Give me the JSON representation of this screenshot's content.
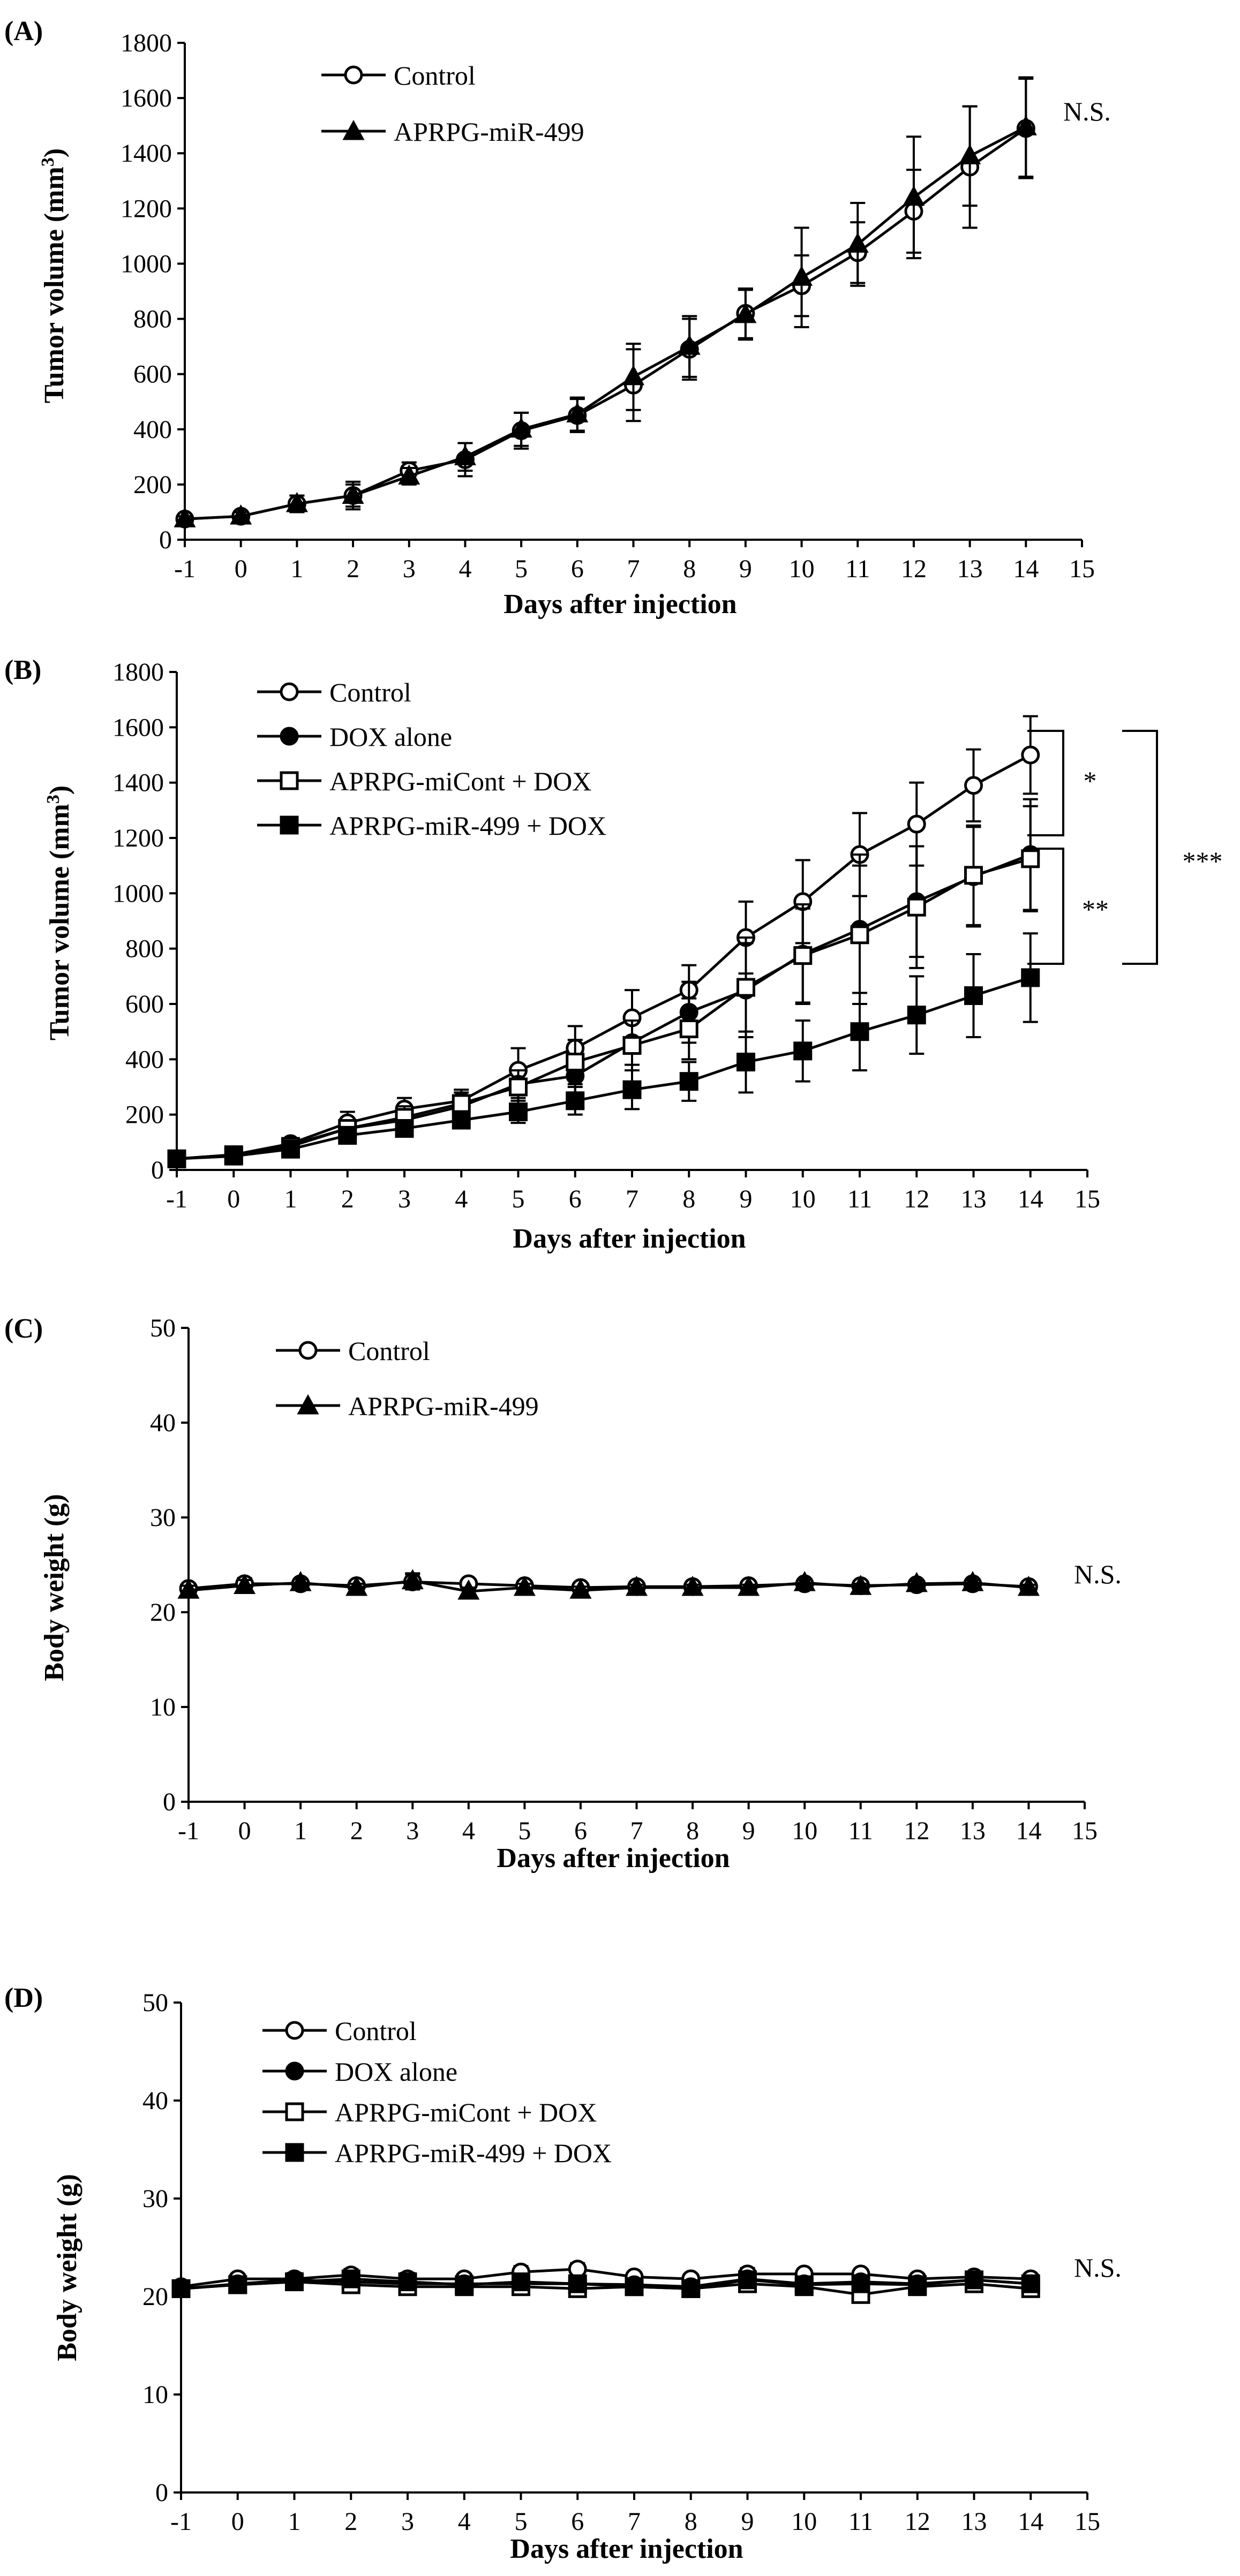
{
  "chart_data": [
    {
      "panel": "(A)",
      "type": "line",
      "xlabel": "Days after injection",
      "ylabel": "Tumor volume (mm",
      "ylabel_sup": "3",
      "ylabel_close": ")",
      "ylim": [
        0,
        1800
      ],
      "yticks": [
        0,
        200,
        400,
        600,
        800,
        1000,
        1200,
        1400,
        1600,
        1800
      ],
      "xlim": [
        -1,
        15
      ],
      "xticks": [
        -1,
        0,
        1,
        2,
        3,
        4,
        5,
        6,
        7,
        8,
        9,
        10,
        11,
        12,
        13,
        14,
        15
      ],
      "x": [
        -1,
        0,
        1,
        2,
        3,
        4,
        5,
        6,
        7,
        8,
        9,
        10,
        11,
        12,
        13,
        14
      ],
      "annotation": "N.S.",
      "series": [
        {
          "name": "Control",
          "marker": "circle-open",
          "values": [
            75,
            85,
            130,
            160,
            250,
            290,
            395,
            450,
            560,
            690,
            820,
            920,
            1040,
            1190,
            1350,
            1490
          ],
          "errors": [
            10,
            15,
            30,
            40,
            30,
            60,
            65,
            60,
            130,
            110,
            90,
            110,
            110,
            150,
            220,
            180
          ]
        },
        {
          "name": "APRPG-miR-499",
          "marker": "triangle-filled",
          "values": [
            75,
            85,
            130,
            160,
            230,
            300,
            400,
            455,
            590,
            700,
            815,
            950,
            1070,
            1240,
            1390,
            1495
          ],
          "errors": [
            10,
            15,
            30,
            50,
            30,
            50,
            60,
            60,
            120,
            110,
            90,
            180,
            150,
            220,
            180,
            180
          ]
        }
      ]
    },
    {
      "panel": "(B)",
      "type": "line",
      "xlabel": "Days after injection",
      "ylabel": "Tumor volume (mm",
      "ylabel_sup": "3",
      "ylabel_close": ")",
      "ylim": [
        0,
        1800
      ],
      "yticks": [
        0,
        200,
        400,
        600,
        800,
        1000,
        1200,
        1400,
        1600,
        1800
      ],
      "xlim": [
        -1,
        15
      ],
      "xticks": [
        -1,
        0,
        1,
        2,
        3,
        4,
        5,
        6,
        7,
        8,
        9,
        10,
        11,
        12,
        13,
        14,
        15
      ],
      "x": [
        -1,
        0,
        1,
        2,
        3,
        4,
        5,
        6,
        7,
        8,
        9,
        10,
        11,
        12,
        13,
        14
      ],
      "significance": [
        "*",
        "**",
        "***"
      ],
      "series": [
        {
          "name": "Control",
          "marker": "circle-open",
          "values": [
            40,
            55,
            95,
            170,
            220,
            250,
            360,
            440,
            550,
            650,
            840,
            970,
            1140,
            1250,
            1390,
            1500
          ],
          "errors": [
            10,
            10,
            20,
            40,
            40,
            40,
            80,
            80,
            100,
            90,
            130,
            150,
            150,
            150,
            130,
            140
          ]
        },
        {
          "name": "DOX alone",
          "marker": "circle-filled",
          "values": [
            40,
            55,
            90,
            150,
            180,
            230,
            310,
            340,
            460,
            570,
            650,
            780,
            870,
            970,
            1060,
            1140
          ],
          "errors": [
            10,
            10,
            20,
            30,
            30,
            40,
            50,
            60,
            80,
            110,
            170,
            180,
            270,
            200,
            180,
            200
          ]
        },
        {
          "name": "APRPG-miCont + DOX",
          "marker": "square-open",
          "values": [
            40,
            55,
            85,
            150,
            190,
            240,
            300,
            390,
            450,
            510,
            660,
            775,
            850,
            950,
            1065,
            1125
          ],
          "errors": [
            10,
            10,
            20,
            30,
            40,
            40,
            60,
            80,
            90,
            110,
            180,
            170,
            250,
            220,
            180,
            190
          ]
        },
        {
          "name": "APRPG-miR-499 + DOX",
          "marker": "square-filled",
          "values": [
            40,
            50,
            75,
            125,
            150,
            180,
            210,
            250,
            290,
            320,
            390,
            430,
            500,
            560,
            630,
            695
          ],
          "errors": [
            10,
            10,
            20,
            30,
            30,
            30,
            40,
            50,
            70,
            70,
            110,
            110,
            140,
            140,
            150,
            160
          ]
        }
      ]
    },
    {
      "panel": "(C)",
      "type": "line",
      "xlabel": "Days after injection",
      "ylabel": "Body weight (g)",
      "ylim": [
        0,
        50
      ],
      "yticks": [
        0,
        10,
        20,
        30,
        40,
        50
      ],
      "xlim": [
        -1,
        15
      ],
      "xticks": [
        -1,
        0,
        1,
        2,
        3,
        4,
        5,
        6,
        7,
        8,
        9,
        10,
        11,
        12,
        13,
        14,
        15
      ],
      "x": [
        -1,
        0,
        1,
        2,
        3,
        4,
        5,
        6,
        7,
        8,
        9,
        10,
        11,
        12,
        13,
        14
      ],
      "annotation": "N.S.",
      "series": [
        {
          "name": "Control",
          "marker": "circle-open",
          "values": [
            22.5,
            23.0,
            23.0,
            22.8,
            23.2,
            23.0,
            22.8,
            22.6,
            22.7,
            22.7,
            22.8,
            23.0,
            22.8,
            22.9,
            23.0,
            22.7
          ],
          "errors": [
            0.5,
            0.6,
            0.4,
            0.4,
            0.8,
            0.4,
            0.4,
            0.4,
            0.3,
            0.3,
            0.3,
            0.3,
            0.3,
            0.3,
            0.3,
            0.3
          ]
        },
        {
          "name": "APRPG-miR-499",
          "marker": "triangle-filled",
          "values": [
            22.3,
            22.8,
            23.1,
            22.6,
            23.3,
            22.2,
            22.6,
            22.3,
            22.6,
            22.6,
            22.6,
            23.1,
            22.7,
            23.0,
            23.1,
            22.6
          ],
          "errors": [
            0.5,
            0.6,
            0.4,
            0.4,
            0.8,
            0.4,
            0.4,
            0.4,
            0.3,
            0.3,
            0.3,
            0.3,
            0.3,
            0.3,
            0.3,
            0.3
          ]
        }
      ]
    },
    {
      "panel": "(D)",
      "type": "line",
      "xlabel": "Days after injection",
      "ylabel": "Body weight (g)",
      "ylim": [
        0,
        50
      ],
      "yticks": [
        0,
        10,
        20,
        30,
        40,
        50
      ],
      "xlim": [
        -1,
        15
      ],
      "xticks": [
        -1,
        0,
        1,
        2,
        3,
        4,
        5,
        6,
        7,
        8,
        9,
        10,
        11,
        12,
        13,
        14,
        15
      ],
      "x": [
        -1,
        0,
        1,
        2,
        3,
        4,
        5,
        6,
        7,
        8,
        9,
        10,
        11,
        12,
        13,
        14
      ],
      "annotation": "N.S.",
      "series": [
        {
          "name": "Control",
          "marker": "circle-open",
          "values": [
            21.0,
            21.8,
            21.8,
            22.2,
            21.8,
            21.8,
            22.5,
            22.8,
            22.0,
            21.8,
            22.3,
            22.3,
            22.3,
            21.8,
            22.0,
            21.8
          ],
          "errors": [
            0.5,
            0.5,
            0.6,
            0.6,
            0.6,
            0.5,
            0.6,
            0.6,
            0.5,
            0.5,
            0.6,
            0.5,
            0.5,
            0.5,
            0.5,
            0.5
          ]
        },
        {
          "name": "DOX alone",
          "marker": "circle-filled",
          "values": [
            20.8,
            21.3,
            21.7,
            21.5,
            21.3,
            21.3,
            21.3,
            21.3,
            21.2,
            21.0,
            21.8,
            21.3,
            21.5,
            21.3,
            21.7,
            21.3
          ],
          "errors": [
            0.5,
            0.5,
            0.6,
            0.6,
            0.6,
            0.5,
            0.6,
            0.6,
            0.5,
            0.5,
            0.6,
            0.5,
            0.5,
            0.5,
            0.5,
            0.5
          ]
        },
        {
          "name": "APRPG-miCont + DOX",
          "marker": "square-open",
          "values": [
            20.8,
            21.2,
            21.5,
            21.2,
            21.0,
            21.0,
            21.0,
            20.8,
            21.0,
            20.8,
            21.3,
            21.0,
            20.2,
            21.0,
            21.3,
            20.8
          ],
          "errors": [
            0.5,
            0.5,
            0.6,
            0.6,
            0.6,
            0.5,
            0.6,
            0.6,
            0.5,
            0.5,
            0.6,
            0.5,
            0.5,
            0.5,
            0.5,
            0.5
          ]
        },
        {
          "name": "APRPG-miR-499 + DOX",
          "marker": "square-filled",
          "values": [
            20.8,
            21.2,
            21.5,
            21.8,
            21.5,
            21.2,
            21.5,
            21.3,
            21.0,
            20.8,
            21.7,
            21.2,
            21.3,
            21.2,
            21.7,
            21.3
          ],
          "errors": [
            0.5,
            0.5,
            0.6,
            0.6,
            0.6,
            0.5,
            0.6,
            0.6,
            0.5,
            0.5,
            0.6,
            0.5,
            0.5,
            0.5,
            0.5,
            0.5
          ]
        }
      ]
    }
  ]
}
